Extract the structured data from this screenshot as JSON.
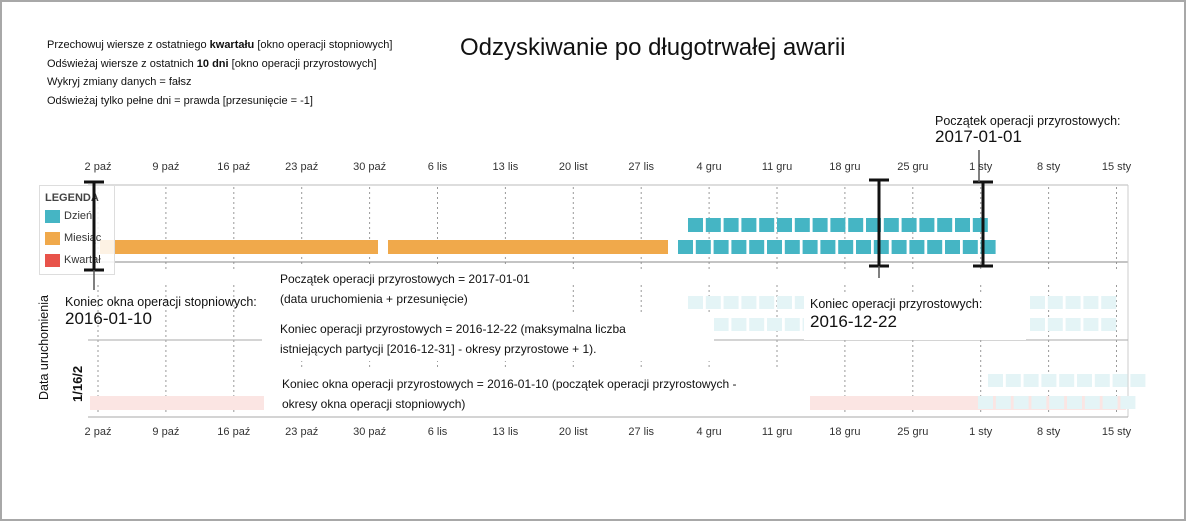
{
  "title": "Odzyskiwanie po długotrwałej awarii",
  "settings": [
    {
      "pre": "Przechowuj wiersze z ostatniego ",
      "bold": "kwartału",
      "post": " [okno operacji stopniowych]"
    },
    {
      "pre": "Odświeżaj wiersze z ostatnich ",
      "bold": "10 dni",
      "post": " [okno operacji przyrostowych]"
    },
    {
      "pre": "Wykryj zmiany danych = fałsz",
      "bold": "",
      "post": ""
    },
    {
      "pre": "Odświeżaj tylko pełne dni = prawda [przesunięcie = -1]",
      "bold": "",
      "post": ""
    }
  ],
  "ticks": [
    "2 paź",
    "9 paź",
    "16 paź",
    "23 paź",
    "30 paź",
    "6 lis",
    "13 lis",
    "20 list",
    "27 lis",
    "4 gru",
    "11 gru",
    "18 gru",
    "25 gru",
    "1 sty",
    "8 sty",
    "15 sty"
  ],
  "legend": {
    "title": "LEGENDA",
    "items": [
      {
        "label": "Dzień",
        "color": "#45b5c4"
      },
      {
        "label": "Miesiąc",
        "color": "#f0a94b"
      },
      {
        "label": "Kwartał",
        "color": "#e8534a"
      }
    ]
  },
  "y_axis": {
    "title": "Data uruchomienia",
    "run_label": "1/16/2"
  },
  "callouts": {
    "inc_start": {
      "label": "Początek operacji przyrostowych:",
      "value": "2017-01-01"
    },
    "rolling_end": {
      "label": "Koniec okna operacji stopniowych:",
      "value": "2016-01-10"
    },
    "inc_end": {
      "label": "Koniec operacji przyrostowych:",
      "value": "2016-12-22"
    }
  },
  "explanations": {
    "start": [
      "Początek operacji przyrostowych = 2017-01-01",
      "(data uruchomienia + przesunięcie)"
    ],
    "end": [
      "Koniec operacji przyrostowych = 2016-12-22 (maksymalna liczba",
      "istniejących partycji [2016-12-31] - okresy przyrostowe + 1)."
    ],
    "window": [
      "Koniec okna operacji przyrostowych = 2016-01-10 (początek operacji przyrostowych -",
      "okresy okna operacji stopniowych)"
    ]
  },
  "colors": {
    "day": "#45b5c4",
    "month": "#f0a94b",
    "quarter": "#e8534a"
  }
}
